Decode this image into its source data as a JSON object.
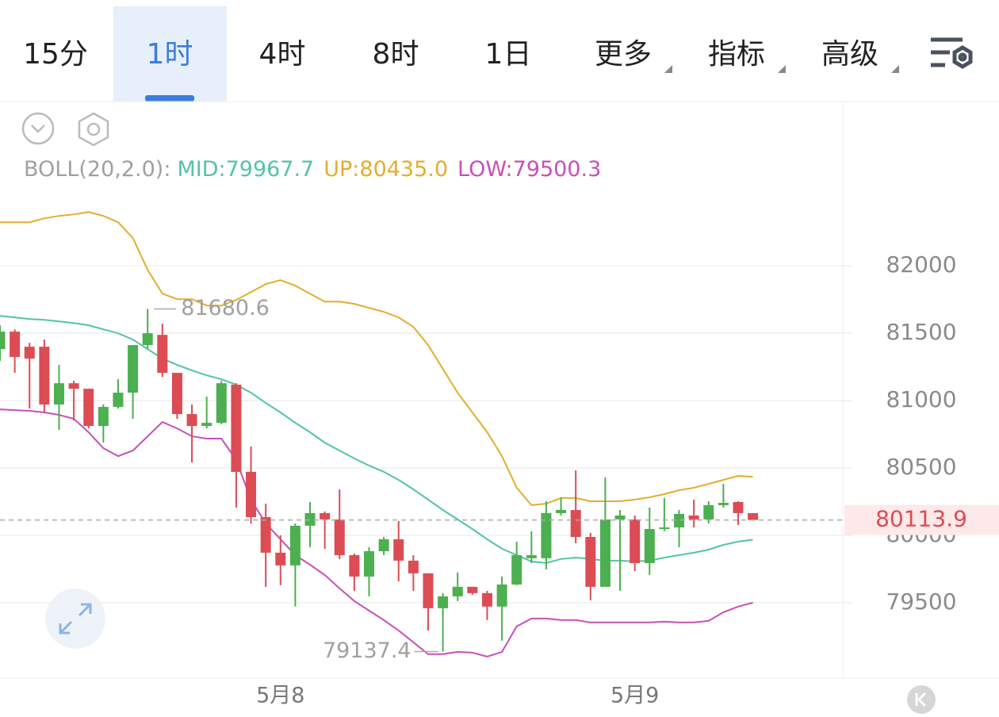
{
  "toolbar": {
    "tabs": [
      "15分",
      "1时",
      "4时",
      "8时",
      "1日",
      "更多",
      "指标",
      "高级"
    ],
    "active": 1
  },
  "chart_data": {
    "type": "candlestick",
    "indicator_label": "BOLL(20,2.0):",
    "categories": [
      null,
      null,
      null,
      null,
      null,
      null,
      null,
      null,
      null,
      null,
      null,
      null,
      null,
      null,
      null,
      null,
      null,
      null,
      null,
      "5月8",
      null,
      null,
      null,
      null,
      null,
      null,
      null,
      null,
      null,
      null,
      null,
      null,
      null,
      null,
      null,
      null,
      null,
      null,
      null,
      null,
      null,
      null,
      null,
      "5月9",
      null,
      null,
      null,
      null,
      null,
      null,
      null,
      null
    ],
    "up_color": "#4caf50",
    "down_color": "#dc4c54",
    "candles": {
      "open": [
        81382,
        81512,
        81400,
        81400,
        80971,
        81129,
        81088,
        80812,
        80953,
        81059,
        81412,
        81488,
        81206,
        80900,
        80812,
        80835,
        81118,
        80471,
        80135,
        79871,
        79777,
        80071,
        80165,
        80118,
        79853,
        79694,
        79882,
        79971,
        79812,
        79718,
        79459,
        79547,
        79618,
        79571,
        79471,
        79635,
        79830,
        79830,
        80165,
        80188,
        79988,
        79618,
        80118,
        80118,
        79794,
        80047,
        80059,
        80147,
        80118,
        80224,
        80247,
        80165
      ],
      "high": [
        81559,
        81529,
        81429,
        81453,
        81265,
        81147,
        81088,
        80971,
        81159,
        81412,
        81680.6,
        81571,
        81206,
        80971,
        81029,
        81147,
        81129,
        80659,
        80235,
        80000,
        80088,
        80247,
        80177,
        80341,
        79865,
        79912,
        79988,
        80106,
        79853,
        79718,
        79571,
        79724,
        79618,
        79588,
        79694,
        79953,
        80030,
        80253,
        80282,
        80482,
        80018,
        80430,
        80188,
        80147,
        80206,
        80277,
        80188,
        80265,
        80253,
        80382,
        80253,
        80165
      ],
      "low": [
        81294,
        81206,
        80941,
        80912,
        80782,
        80853,
        80794,
        80688,
        80941,
        80865,
        81382,
        81176,
        80865,
        80541,
        80794,
        80824,
        80206,
        80088,
        79618,
        79630,
        79471,
        79912,
        79900,
        79824,
        79588,
        79547,
        79853,
        79659,
        79588,
        79294,
        79137.4,
        79512,
        79559,
        79371,
        79218,
        79630,
        79794,
        79747,
        80147,
        79941,
        79518,
        79618,
        79588,
        79735,
        79706,
        80030,
        79912,
        80059,
        80088,
        80206,
        80077,
        80110
      ],
      "close": [
        81512,
        81324,
        81312,
        80971,
        81129,
        81088,
        80812,
        80953,
        81059,
        81412,
        81500,
        81206,
        80900,
        80812,
        80835,
        81129,
        80471,
        80135,
        79871,
        79777,
        80071,
        80165,
        80118,
        79853,
        79694,
        79882,
        79971,
        79812,
        79718,
        79459,
        79547,
        79618,
        79571,
        79471,
        79635,
        79853,
        79853,
        80165,
        80188,
        79988,
        79618,
        80118,
        80147,
        79794,
        80047,
        80059,
        80159,
        80118,
        80224,
        80241,
        80165,
        80113.9
      ]
    },
    "series": [
      {
        "name": "MID:79967.7",
        "color": "#52c4a4",
        "values": [
          81629,
          81618,
          81606,
          81600,
          81588,
          81576,
          81559,
          81529,
          81500,
          81453,
          81382,
          81312,
          81265,
          81224,
          81188,
          81159,
          81118,
          81059,
          80982,
          80912,
          80835,
          80765,
          80688,
          80629,
          80571,
          80518,
          80471,
          80412,
          80341,
          80265,
          80188,
          80118,
          80047,
          79971,
          79900,
          79853,
          79806,
          79794,
          79824,
          79835,
          79824,
          79812,
          79812,
          79806,
          79812,
          79835,
          79853,
          79871,
          79894,
          79929,
          79953,
          79967.7
        ]
      },
      {
        "name": "UP:80435.0",
        "color": "#e5ad2c",
        "values": [
          82324,
          82324,
          82324,
          82353,
          82371,
          82382,
          82400,
          82371,
          82324,
          82206,
          81971,
          81794,
          81753,
          81753,
          81706,
          81706,
          81747,
          81806,
          81865,
          81894,
          81853,
          81794,
          81735,
          81735,
          81718,
          81688,
          81659,
          81618,
          81547,
          81412,
          81235,
          81059,
          80912,
          80765,
          80588,
          80353,
          80224,
          80235,
          80277,
          80277,
          80253,
          80253,
          80253,
          80265,
          80282,
          80306,
          80335,
          80353,
          80382,
          80412,
          80441,
          80435
        ]
      },
      {
        "name": "LOW:79500.3",
        "color": "#c94fb7",
        "values": [
          80935,
          80929,
          80924,
          80912,
          80894,
          80865,
          80765,
          80647,
          80588,
          80629,
          80735,
          80841,
          80794,
          80735,
          80718,
          80718,
          80559,
          80265,
          80088,
          79971,
          79853,
          79782,
          79706,
          79606,
          79512,
          79441,
          79371,
          79294,
          79206,
          79118,
          79118,
          79135,
          79129,
          79100,
          79135,
          79324,
          79382,
          79382,
          79371,
          79371,
          79353,
          79353,
          79353,
          79353,
          79353,
          79359,
          79353,
          79353,
          79365,
          79429,
          79471,
          79500.3
        ]
      }
    ],
    "annotations": [
      {
        "value": 81680.6,
        "label": "81680.6"
      },
      {
        "value": 79137.4,
        "label": "79137.4"
      }
    ],
    "last_price": {
      "value": 80113.9,
      "label": "80113.9"
    },
    "ylim": [
      78940,
      83220
    ],
    "yticks": [
      79500,
      80000,
      80500,
      81000,
      81500,
      82000
    ],
    "grid": true
  }
}
